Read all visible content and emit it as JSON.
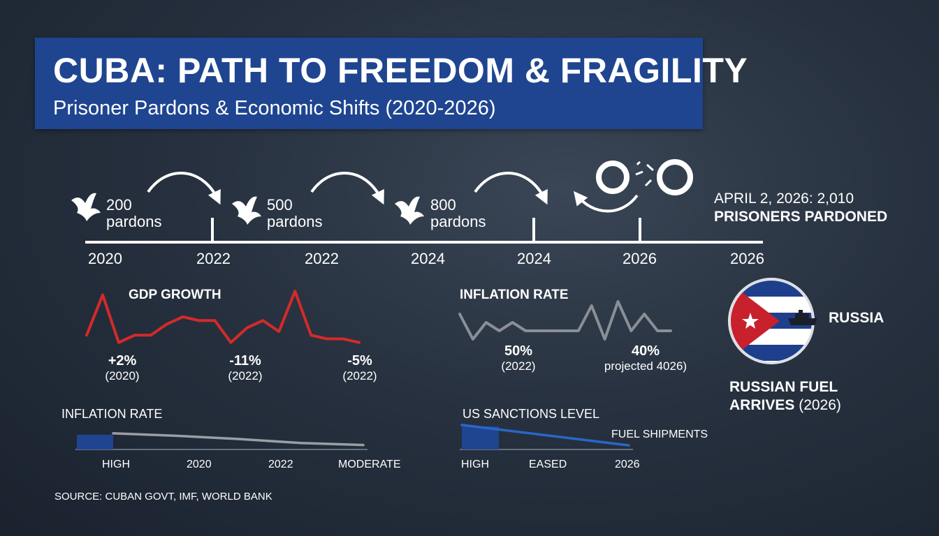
{
  "header": {
    "title": "CUBA: PATH TO FREEDOM & FRAGILITY",
    "subtitle": "Prisoner Pardons & Economic Shifts (2020-2026)"
  },
  "timeline": {
    "years": [
      "2020",
      "2022",
      "2022",
      "2024",
      "2024",
      "2026",
      "2026"
    ],
    "pardons": [
      {
        "count": "200",
        "unit": "pardons"
      },
      {
        "count": "500",
        "unit": "pardons"
      },
      {
        "count": "800",
        "unit": "pardons"
      }
    ],
    "milestone": {
      "line1": "APRIL 2, 2026: 2,010",
      "line2": "PRISONERS PARDONED"
    },
    "icons": [
      "dove-icon",
      "arrow-icon",
      "broken-chain-icon"
    ]
  },
  "chart_data": [
    {
      "type": "line",
      "title": "GDP GROWTH",
      "color": "#d42a2a",
      "values": [
        -2,
        9,
        -4,
        -2,
        -2,
        1,
        3,
        2,
        2,
        -4,
        0,
        2,
        -1,
        10,
        -2,
        -3,
        -3,
        -4
      ],
      "annotations": [
        {
          "value": "+2%",
          "label": "(2020)"
        },
        {
          "value": "-11%",
          "label": "(2022)"
        },
        {
          "value": "-5%",
          "label": "(2022)"
        }
      ]
    },
    {
      "type": "line",
      "title": "INFLATION RATE",
      "color": "#8a8f96",
      "values": [
        3,
        -3,
        1,
        -1,
        1,
        -1,
        -1,
        -1,
        -1,
        -1,
        5,
        -3,
        6,
        -1,
        3,
        -1,
        -1
      ],
      "annotations": [
        {
          "value": "50%",
          "label": "(2022)"
        },
        {
          "value": "40%",
          "label": "projected 4026)"
        }
      ]
    },
    {
      "type": "area",
      "title": "INFLATION RATE",
      "color": "#9a9ea5",
      "fill_color": "#1f4590",
      "x_ticks": [
        "HIGH",
        "2020",
        "2022",
        "MODERATE"
      ],
      "values": [
        10,
        9.4,
        8.6,
        7.6,
        7.1
      ]
    },
    {
      "type": "area",
      "title": "US SANCTIONS LEVEL",
      "line_label": "FUEL SHIPMENTS",
      "color": "#2a66c8",
      "fill_color": "#1f4590",
      "x_ticks": [
        "HIGH",
        "EASED",
        "2026"
      ],
      "values": [
        10,
        7.5,
        5
      ]
    }
  ],
  "russia_panel": {
    "label": "RUSSIA",
    "caption_line1": "RUSSIAN FUEL",
    "caption_bold": "ARRIVES",
    "caption_year": "(2026)",
    "icons": [
      "cuba-flag-icon",
      "ship-icon"
    ]
  },
  "footer": {
    "source": "SOURCE: CUBAN GOVT, IMF, WORLD BANK"
  },
  "colors": {
    "background": "#27313f",
    "banner": "#1f4590",
    "gdp_line": "#d42a2a",
    "inflation_line": "#8a8f96",
    "sanctions_line": "#2a66c8",
    "flag_red": "#c8202c",
    "flag_blue": "#1e3f8c"
  }
}
